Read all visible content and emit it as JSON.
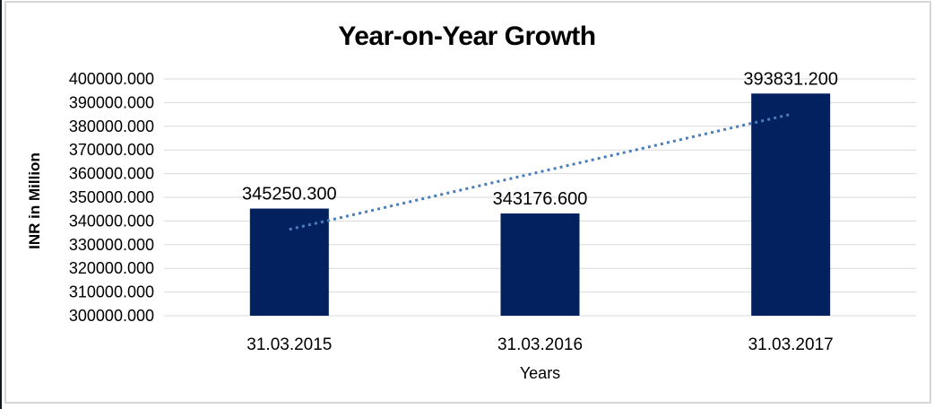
{
  "chart": {
    "title": "Year-on-Year Growth",
    "y_axis_title": "INR in Million",
    "x_axis_title": "Years"
  },
  "chart_data": {
    "type": "bar",
    "title": "Year-on-Year Growth",
    "xlabel": "Years",
    "ylabel": "INR in Million",
    "categories": [
      "31.03.2015",
      "31.03.2016",
      "31.03.2017"
    ],
    "values": [
      345250.3,
      343176.6,
      393831.2
    ],
    "data_labels": [
      "345250.300",
      "343176.600",
      "393831.200"
    ],
    "ylim": [
      300000,
      400000
    ],
    "ytick_step": 10000,
    "ytick_labels": [
      "300000.000",
      "310000.000",
      "320000.000",
      "330000.000",
      "340000.000",
      "350000.000",
      "360000.000",
      "370000.000",
      "380000.000",
      "390000.000",
      "400000.000"
    ],
    "grid": true,
    "legend": "none",
    "bar_color": "#02215E",
    "trendline": {
      "type": "linear",
      "style": "dotted",
      "color": "#4A7EBB",
      "start_value": 336462.1,
      "end_value": 385043.0
    }
  },
  "colors": {
    "gridline": "#D9D9D9",
    "frame_border": "#D6D6D6",
    "text": "#000000"
  }
}
